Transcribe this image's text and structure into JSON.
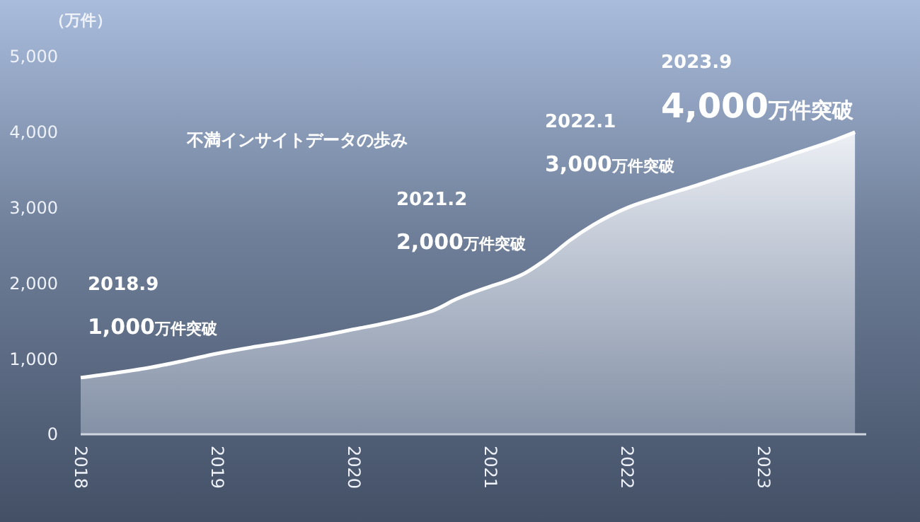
{
  "chart_data": {
    "type": "area",
    "title": "不満インサイトデータの歩み",
    "ylabel": "（万件）",
    "x": [
      "2018-01",
      "2018-04",
      "2018-07",
      "2018-10",
      "2019-01",
      "2019-04",
      "2019-07",
      "2019-10",
      "2020-01",
      "2020-04",
      "2020-07",
      "2020-08",
      "2020-10",
      "2021-01",
      "2021-02",
      "2021-04",
      "2021-06",
      "2021-08",
      "2021-10",
      "2022-01",
      "2022-04",
      "2022-07",
      "2022-10",
      "2023-01",
      "2023-04",
      "2023-07",
      "2023-09"
    ],
    "series": [
      {
        "color": "#ffffff",
        "values": [
          750,
          810,
          880,
          970,
          1070,
          1150,
          1220,
          1300,
          1390,
          1480,
          1590,
          1640,
          1790,
          1960,
          2010,
          2130,
          2330,
          2570,
          2770,
          3000,
          3150,
          3290,
          3440,
          3580,
          3730,
          3880,
          4000
        ]
      }
    ],
    "xlim": [
      "2018-01",
      "2023-10"
    ],
    "xticks": [
      {
        "value": "2018-01",
        "label": "2018"
      },
      {
        "value": "2019-01",
        "label": "2019"
      },
      {
        "value": "2020-01",
        "label": "2020"
      },
      {
        "value": "2021-01",
        "label": "2021"
      },
      {
        "value": "2022-01",
        "label": "2022"
      },
      {
        "value": "2023-01",
        "label": "2023"
      }
    ],
    "ylim": [
      0,
      5000
    ],
    "yticks": [
      {
        "value": 0,
        "label": "0"
      },
      {
        "value": 1000,
        "label": "1,000"
      },
      {
        "value": 2000,
        "label": "2,000"
      },
      {
        "value": 3000,
        "label": "3,000"
      },
      {
        "value": 4000,
        "label": "4,000"
      },
      {
        "value": 5000,
        "label": "5,000"
      }
    ],
    "grid": false,
    "annotations": [
      "2018.9",
      "1,000万件突破",
      "2021.2",
      "2,000万件突破",
      "2022.1",
      "3,000万件突破",
      "2023.9",
      "4,000万件突破"
    ]
  }
}
